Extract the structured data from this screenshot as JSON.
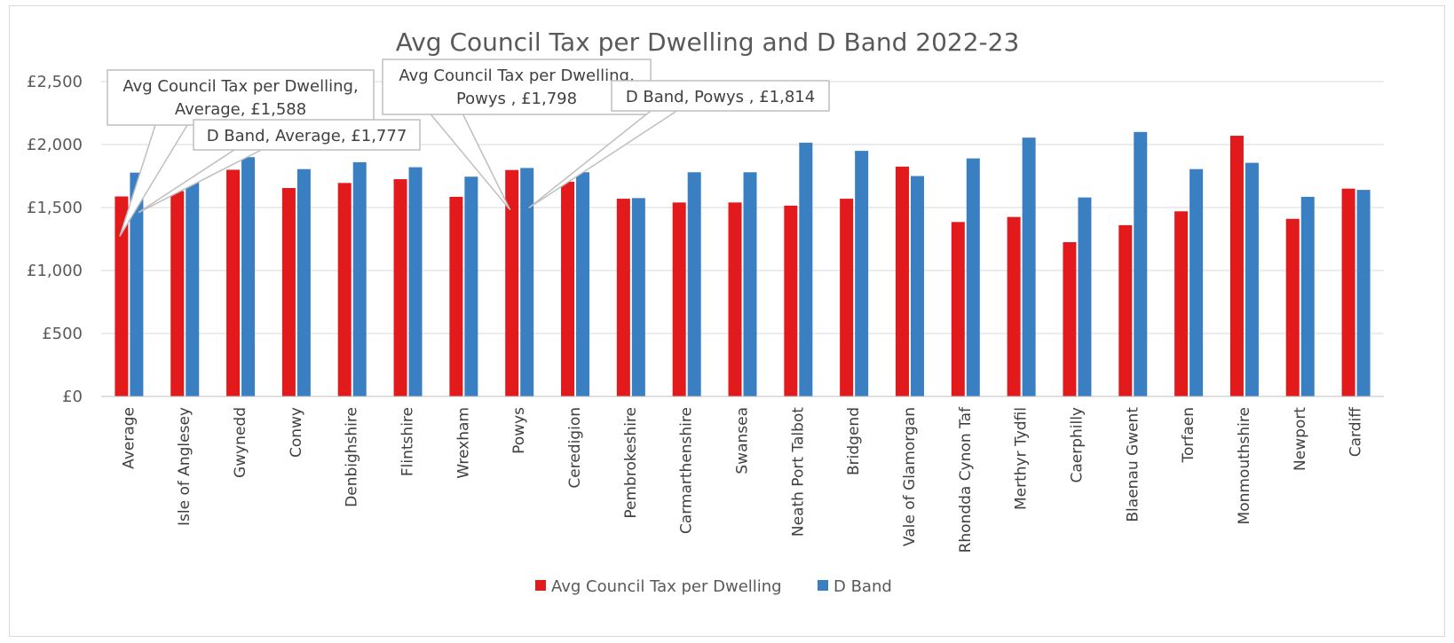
{
  "chart_data": {
    "type": "bar",
    "title": "Avg Council Tax per Dwelling and D Band 2022-23",
    "xlabel": "",
    "ylabel": "",
    "ylim": [
      0,
      2500
    ],
    "yticks": [
      0,
      500,
      1000,
      1500,
      2000,
      2500
    ],
    "ytick_labels": [
      "£0",
      "£500",
      "£1,000",
      "£1,500",
      "£2,000",
      "£2,500"
    ],
    "grid": true,
    "legend_position": "bottom",
    "categories": [
      "Average",
      "Isle of Anglesey",
      "Gwynedd",
      "Conwy",
      "Denbighshire",
      "Flintshire",
      "Wrexham",
      "Powys",
      "Ceredigion",
      "Pembrokeshire",
      "Carmarthenshire",
      "Swansea",
      "Neath Port Talbot",
      "Bridgend",
      "Vale of Glamorgan",
      "Rhondda Cynon Taf",
      "Merthyr Tydfil",
      "Caerphilly",
      "Blaenau Gwent",
      "Torfaen",
      "Monmouthshire",
      "Newport",
      "Cardiff"
    ],
    "series": [
      {
        "name": "Avg Council Tax per Dwelling",
        "color": "#e31a1c",
        "values": [
          1588,
          1630,
          1800,
          1655,
          1695,
          1725,
          1585,
          1798,
          1705,
          1570,
          1540,
          1540,
          1515,
          1570,
          1825,
          1385,
          1425,
          1225,
          1360,
          1470,
          2070,
          1410,
          1650
        ]
      },
      {
        "name": "D Band",
        "color": "#3a7fc1",
        "values": [
          1777,
          1715,
          1900,
          1805,
          1860,
          1820,
          1745,
          1814,
          1780,
          1575,
          1780,
          1780,
          2015,
          1950,
          1750,
          1890,
          2055,
          1580,
          2100,
          1805,
          1855,
          1585,
          1640
        ]
      }
    ],
    "annotations": [
      {
        "series": 0,
        "category": "Average",
        "lines": [
          "Avg Council Tax per Dwelling,",
          "Average, £1,588"
        ]
      },
      {
        "series": 1,
        "category": "Average",
        "lines": [
          "D Band, Average, £1,777"
        ]
      },
      {
        "series": 0,
        "category": "Powys",
        "lines": [
          "Avg Council Tax per Dwelling,",
          "Powys , £1,798"
        ]
      },
      {
        "series": 1,
        "category": "Powys",
        "lines": [
          "D Band, Powys , £1,814"
        ]
      }
    ]
  }
}
